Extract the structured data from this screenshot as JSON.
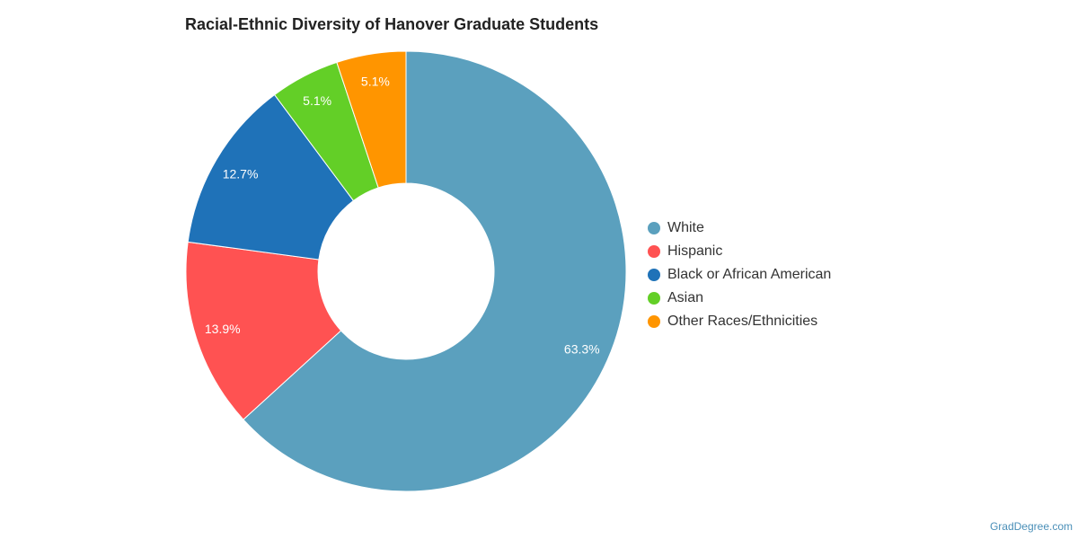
{
  "chart_data": {
    "type": "pie",
    "variant": "donut",
    "title": "Racial-Ethnic Diversity of Hanover Graduate Students",
    "slices": [
      {
        "name": "White",
        "value": 63.3,
        "label": "63.3%",
        "color": "#5ba0be"
      },
      {
        "name": "Hispanic",
        "value": 13.9,
        "label": "13.9%",
        "color": "#ff5252"
      },
      {
        "name": "Black or African American",
        "value": 12.7,
        "label": "12.7%",
        "color": "#1f72b8"
      },
      {
        "name": "Asian",
        "value": 5.1,
        "label": "5.1%",
        "color": "#63cf27"
      },
      {
        "name": "Other Races/Ethnicities",
        "value": 5.1,
        "label": "5.1%",
        "color": "#ff9500"
      }
    ],
    "legend_position": "right"
  },
  "watermark": "GradDegree.com"
}
